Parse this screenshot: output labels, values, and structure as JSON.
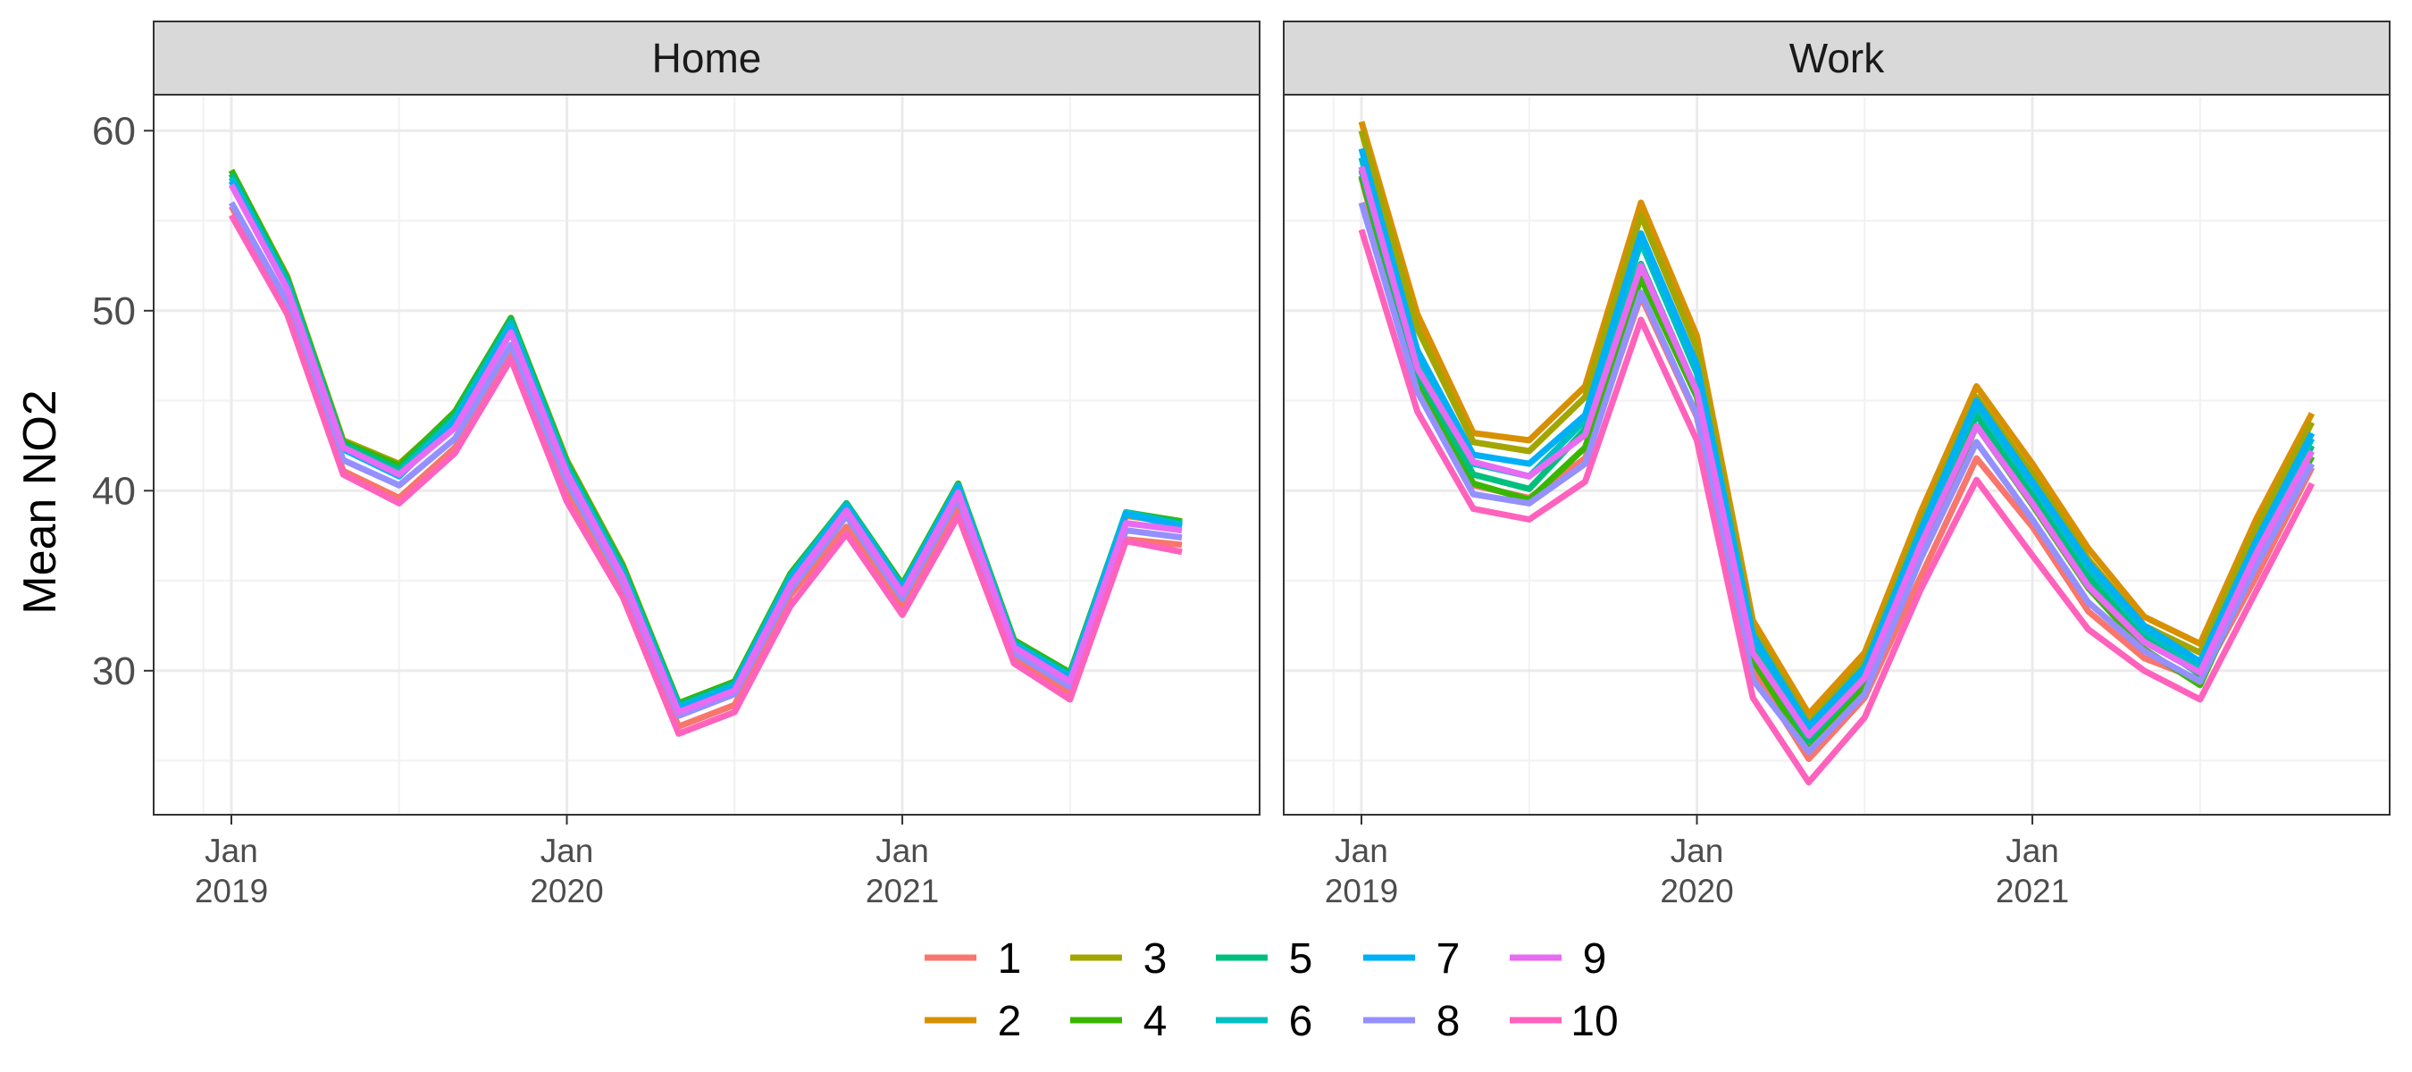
{
  "chart_data": {
    "type": "line",
    "ylabel": "Mean NO2",
    "xlabel": "",
    "ylim": [
      22,
      62
    ],
    "y_ticks": [
      30,
      40,
      50,
      60
    ],
    "x_ticks": [
      {
        "date": "2019-01",
        "line1": "Jan",
        "line2": "2019"
      },
      {
        "date": "2020-01",
        "line1": "Jan",
        "line2": "2020"
      },
      {
        "date": "2021-01",
        "line1": "Jan",
        "line2": "2021"
      }
    ],
    "grid": true,
    "legend_position": "bottom",
    "x": [
      "2019-01",
      "2019-03",
      "2019-05",
      "2019-07",
      "2019-09",
      "2019-11",
      "2020-01",
      "2020-03",
      "2020-05",
      "2020-07",
      "2020-09",
      "2020-11",
      "2021-01",
      "2021-03",
      "2021-05",
      "2021-07",
      "2021-09",
      "2021-11"
    ],
    "series_colors": {
      "1": "#F8766D",
      "2": "#D89000",
      "3": "#A3A500",
      "4": "#39B600",
      "5": "#00BF7D",
      "6": "#00BFC4",
      "7": "#00B0F6",
      "8": "#9590FF",
      "9": "#E76BF3",
      "10": "#FF62BC"
    },
    "panels": [
      {
        "title": "Home",
        "series": [
          {
            "name": "1",
            "values": [
              55.8,
              50.2,
              41.1,
              39.6,
              42.4,
              47.6,
              40.0,
              34.5,
              26.9,
              28.1,
              34.2,
              38.0,
              33.6,
              39.2,
              30.7,
              28.8,
              37.3,
              37.0
            ]
          },
          {
            "name": "2",
            "values": [
              57.6,
              51.8,
              42.6,
              41.3,
              44.2,
              49.4,
              41.6,
              35.8,
              28.0,
              29.2,
              35.3,
              39.2,
              34.6,
              40.2,
              31.6,
              29.7,
              38.6,
              38.2
            ]
          },
          {
            "name": "3",
            "values": [
              57.8,
              51.9,
              42.8,
              41.5,
              44.3,
              49.6,
              41.7,
              35.9,
              28.2,
              29.4,
              35.4,
              39.3,
              34.8,
              40.3,
              31.7,
              29.8,
              38.7,
              38.3
            ]
          },
          {
            "name": "4",
            "values": [
              57.8,
              51.8,
              42.7,
              41.4,
              44.4,
              49.6,
              41.6,
              35.8,
              28.2,
              29.4,
              35.4,
              39.3,
              34.8,
              40.4,
              31.7,
              29.9,
              38.8,
              38.3
            ]
          },
          {
            "name": "5",
            "values": [
              57.6,
              51.7,
              42.6,
              41.2,
              44.2,
              49.5,
              41.5,
              35.7,
              28.1,
              29.3,
              35.3,
              39.3,
              34.7,
              40.3,
              31.6,
              29.8,
              38.8,
              38.2
            ]
          },
          {
            "name": "6",
            "values": [
              57.4,
              51.5,
              42.4,
              41.0,
              44.0,
              49.3,
              41.3,
              35.5,
              28.0,
              29.2,
              35.2,
              39.2,
              34.6,
              40.3,
              31.5,
              29.7,
              38.8,
              38.1
            ]
          },
          {
            "name": "7",
            "values": [
              57.2,
              51.3,
              42.3,
              40.8,
              43.8,
              49.1,
              41.1,
              35.3,
              27.9,
              29.1,
              35.0,
              39.1,
              34.5,
              40.2,
              31.4,
              29.6,
              38.7,
              38.0
            ]
          },
          {
            "name": "8",
            "values": [
              56.0,
              50.5,
              41.7,
              40.3,
              42.9,
              48.1,
              40.5,
              34.9,
              27.5,
              28.7,
              34.5,
              38.6,
              34.0,
              39.6,
              31.0,
              29.1,
              37.8,
              37.4
            ]
          },
          {
            "name": "9",
            "values": [
              57.0,
              51.2,
              42.4,
              40.9,
              43.5,
              48.8,
              41.0,
              35.2,
              27.7,
              28.9,
              34.8,
              38.9,
              34.3,
              39.9,
              31.3,
              29.4,
              38.2,
              37.8
            ]
          },
          {
            "name": "10",
            "values": [
              55.3,
              49.8,
              40.9,
              39.3,
              42.1,
              47.3,
              39.4,
              34.1,
              26.5,
              27.7,
              33.6,
              37.6,
              33.1,
              38.6,
              30.4,
              28.4,
              37.2,
              36.6
            ]
          }
        ]
      },
      {
        "title": "Work",
        "series": [
          {
            "name": "1",
            "values": [
              57.4,
              45.5,
              40.3,
              39.6,
              41.8,
              50.8,
              44.1,
              30.0,
              25.1,
              28.5,
              35.2,
              41.8,
              38.0,
              33.3,
              30.7,
              29.5,
              35.2,
              41.3
            ]
          },
          {
            "name": "2",
            "values": [
              60.5,
              49.8,
              43.2,
              42.8,
              45.8,
              56.0,
              48.6,
              32.8,
              27.6,
              31.0,
              38.8,
              45.8,
              41.5,
              36.8,
              33.0,
              31.5,
              38.4,
              44.3
            ]
          },
          {
            "name": "3",
            "values": [
              60.0,
              49.0,
              42.7,
              42.2,
              45.2,
              55.3,
              47.9,
              32.3,
              27.1,
              30.5,
              38.2,
              45.2,
              40.9,
              36.2,
              32.5,
              31.0,
              37.9,
              43.8
            ]
          },
          {
            "name": "4",
            "values": [
              57.5,
              46.0,
              40.4,
              39.5,
              42.4,
              51.8,
              45.2,
              30.6,
              25.6,
              29.2,
              36.5,
              43.6,
              39.2,
              34.6,
              31.2,
              29.2,
              36.0,
              41.9
            ]
          },
          {
            "name": "5",
            "values": [
              57.8,
              46.5,
              40.9,
              40.1,
              43.4,
              52.6,
              45.5,
              31.3,
              26.1,
              29.6,
              37.1,
              44.2,
              39.8,
              35.2,
              31.8,
              29.8,
              36.6,
              42.5
            ]
          },
          {
            "name": "6",
            "values": [
              58.5,
              47.2,
              41.5,
              40.8,
              43.9,
              53.8,
              46.5,
              31.8,
              26.6,
              30.0,
              37.6,
              44.7,
              40.3,
              35.7,
              32.2,
              30.2,
              37.0,
              42.9
            ]
          },
          {
            "name": "7",
            "values": [
              59.0,
              47.8,
              42.0,
              41.5,
              44.2,
              54.3,
              47.0,
              32.0,
              26.9,
              30.2,
              37.8,
              45.0,
              40.5,
              36.0,
              32.5,
              30.5,
              37.2,
              43.2
            ]
          },
          {
            "name": "8",
            "values": [
              56.0,
              45.5,
              39.8,
              39.3,
              41.5,
              51.0,
              44.2,
              29.5,
              25.5,
              28.7,
              36.2,
              42.7,
              38.4,
              33.8,
              31.1,
              29.4,
              35.8,
              41.5
            ]
          },
          {
            "name": "9",
            "values": [
              58.0,
              46.8,
              41.6,
              40.8,
              43.1,
              52.5,
              45.5,
              31.0,
              26.4,
              29.6,
              37.0,
              43.6,
              39.3,
              34.7,
              31.6,
              29.9,
              36.5,
              42.2
            ]
          },
          {
            "name": "10",
            "values": [
              54.5,
              44.4,
              39.0,
              38.4,
              40.5,
              49.5,
              42.8,
              28.5,
              23.8,
              27.4,
              34.5,
              40.6,
              36.4,
              32.3,
              30.0,
              28.4,
              34.4,
              40.4
            ]
          }
        ]
      }
    ]
  }
}
